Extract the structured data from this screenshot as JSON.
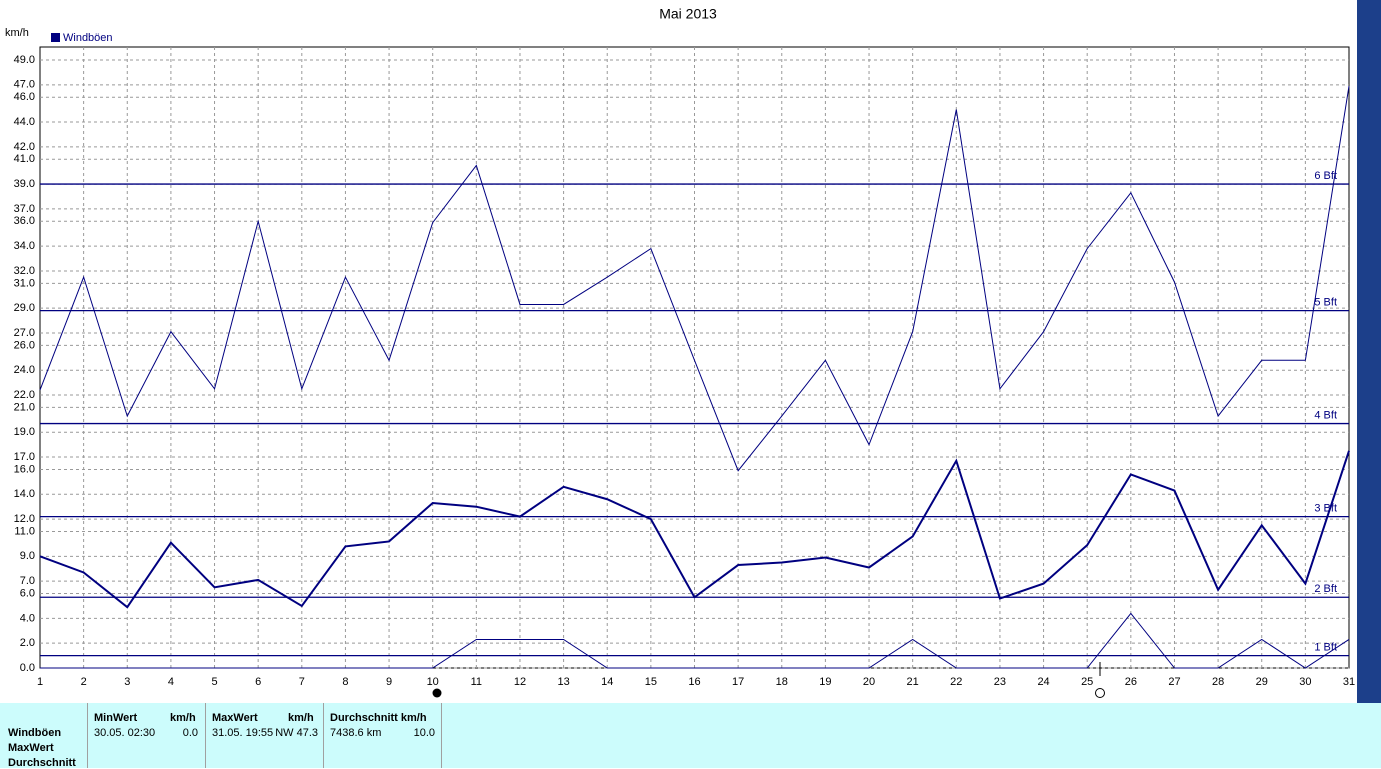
{
  "chart_data": {
    "type": "line",
    "title": "Mai 2013",
    "y_label": "km/h",
    "categories": [
      "1",
      "2",
      "3",
      "4",
      "5",
      "6",
      "7",
      "8",
      "9",
      "10",
      "11",
      "12",
      "13",
      "14",
      "15",
      "16",
      "17",
      "18",
      "19",
      "20",
      "21",
      "22",
      "23",
      "24",
      "25",
      "26",
      "27",
      "28",
      "29",
      "30",
      "31"
    ],
    "series": [
      {
        "name": "Windböen",
        "color": "#000080",
        "values": [
          9.0,
          7.7,
          4.9,
          10.1,
          6.5,
          7.1,
          5.0,
          9.8,
          10.2,
          13.3,
          13.0,
          12.2,
          14.6,
          13.6,
          12.0,
          5.7,
          8.3,
          8.5,
          8.9,
          8.1,
          10.6,
          16.7,
          5.6,
          6.8,
          9.9,
          15.6,
          14.3,
          6.3,
          11.5,
          6.8,
          17.5
        ]
      },
      {
        "color": "#000080",
        "values": [
          22.4,
          31.5,
          20.3,
          27.1,
          22.5,
          36.0,
          22.5,
          31.5,
          24.8,
          35.9,
          40.5,
          29.3,
          29.3,
          31.5,
          33.8,
          24.8,
          15.9,
          20.3,
          24.8,
          18.0,
          27.1,
          45.0,
          22.5,
          27.1,
          33.8,
          38.3,
          31.1,
          20.3,
          24.8,
          24.8,
          46.9
        ]
      },
      {
        "color": "#000080",
        "values": [
          0,
          0,
          0,
          0,
          0,
          0,
          0,
          0,
          0,
          0,
          2.3,
          2.3,
          2.3,
          0,
          0,
          0,
          0,
          0,
          0,
          0,
          2.3,
          0,
          0,
          0,
          0,
          4.4,
          0,
          0,
          2.3,
          0,
          2.3
        ]
      }
    ],
    "ylim": [
      0,
      49
    ],
    "yticks": [
      {
        "value": 0,
        "label": "0.0"
      },
      {
        "value": 2,
        "label": "2.0"
      },
      {
        "value": 4,
        "label": "4.0"
      },
      {
        "value": 6,
        "label": "6.0"
      },
      {
        "value": 7,
        "label": "7.0"
      },
      {
        "value": 9,
        "label": "9.0"
      },
      {
        "value": 11,
        "label": "11.0"
      },
      {
        "value": 12,
        "label": "12.0"
      },
      {
        "value": 14,
        "label": "14.0"
      },
      {
        "value": 16,
        "label": "16.0"
      },
      {
        "value": 17,
        "label": "17.0"
      },
      {
        "value": 19,
        "label": "19.0"
      },
      {
        "value": 21,
        "label": "21.0"
      },
      {
        "value": 22,
        "label": "22.0"
      },
      {
        "value": 24,
        "label": "24.0"
      },
      {
        "value": 26,
        "label": "26.0"
      },
      {
        "value": 27,
        "label": "27.0"
      },
      {
        "value": 29,
        "label": "29.0"
      },
      {
        "value": 31,
        "label": "31.0"
      },
      {
        "value": 32,
        "label": "32.0"
      },
      {
        "value": 34,
        "label": "34.0"
      },
      {
        "value": 36,
        "label": "36.0"
      },
      {
        "value": 37,
        "label": "37.0"
      },
      {
        "value": 39,
        "label": "39.0"
      },
      {
        "value": 41,
        "label": "41.0"
      },
      {
        "value": 42,
        "label": "42.0"
      },
      {
        "value": 44,
        "label": "44.0"
      },
      {
        "value": 46,
        "label": "46.0"
      },
      {
        "value": 47,
        "label": "47.0"
      },
      {
        "value": 49,
        "label": "49.0"
      }
    ],
    "grid": true,
    "reference_lines": [
      {
        "value": 1,
        "label": "1 Bft"
      },
      {
        "value": 5.7,
        "label": "2 Bft"
      },
      {
        "value": 12.2,
        "label": "3 Bft"
      },
      {
        "value": 19.7,
        "label": "4 Bft"
      },
      {
        "value": 28.8,
        "label": "5 Bft"
      },
      {
        "value": 39,
        "label": "6 Bft"
      }
    ]
  },
  "table": {
    "row_labels": [
      "Windböen",
      "MaxWert",
      "Durchschnitt"
    ],
    "headers": [
      "MinWert",
      "km/h",
      "MaxWert",
      "km/h",
      "Durchschnitt km/h"
    ],
    "values": [
      "30.05.  02:30",
      "0.0",
      "31.05.  19:55",
      "NW 47.3",
      "7438.6 km",
      "10.0"
    ]
  }
}
